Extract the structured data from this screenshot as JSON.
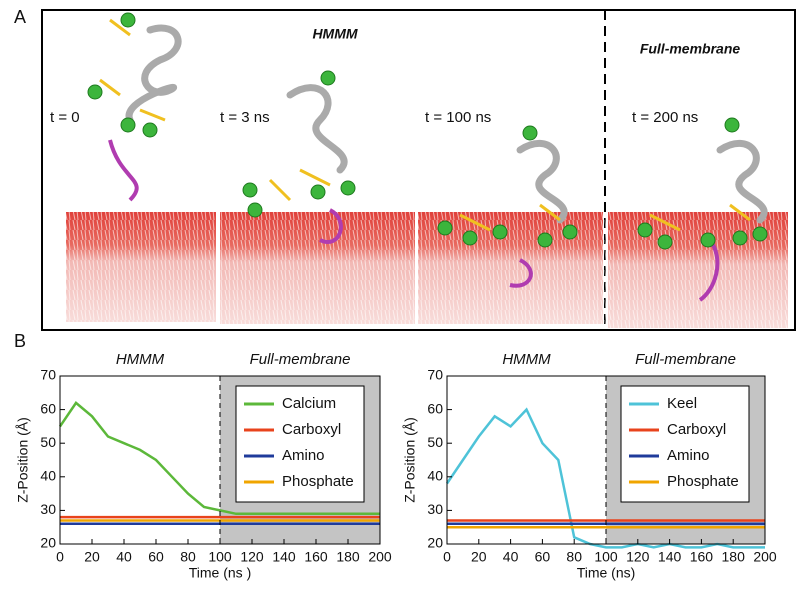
{
  "panel_a": {
    "label": "A",
    "titles": [
      "HMMM",
      "Full-membrane"
    ],
    "time_labels": [
      "t = 0",
      "t = 3 ns",
      "t = 100 ns",
      "t = 200 ns"
    ]
  },
  "panel_b": {
    "label": "B"
  },
  "chart_data": [
    {
      "type": "line",
      "x_label": "Time (ns )",
      "y_label": "Z-Position (Å)",
      "phases": [
        {
          "label": "HMMM",
          "range": [
            0,
            100
          ]
        },
        {
          "label": "Full-membrane",
          "range": [
            100,
            200
          ],
          "shaded": true
        }
      ],
      "x": [
        0,
        10,
        20,
        30,
        40,
        50,
        60,
        70,
        80,
        90,
        100,
        110,
        120,
        130,
        140,
        150,
        160,
        170,
        180,
        190,
        200
      ],
      "series": [
        {
          "name": "Calcium",
          "color": "#5cb83a",
          "values": [
            55,
            62,
            58,
            52,
            50,
            48,
            45,
            40,
            35,
            31,
            30,
            29,
            29,
            29,
            29,
            29,
            29,
            29,
            29,
            29,
            29
          ]
        },
        {
          "name": "Carboxyl",
          "color": "#e8431c",
          "values": [
            28,
            28,
            28,
            28,
            28,
            28,
            28,
            28,
            28,
            28,
            28,
            28,
            28,
            28,
            28,
            28,
            28,
            28,
            28,
            28,
            28
          ]
        },
        {
          "name": "Amino",
          "color": "#1f3b9b",
          "values": [
            26,
            26,
            26,
            26,
            26,
            26,
            26,
            26,
            26,
            26,
            26,
            26,
            26,
            26,
            26,
            26,
            26,
            26,
            26,
            26,
            26
          ]
        },
        {
          "name": "Phosphate",
          "color": "#f0a500",
          "values": [
            27,
            27,
            27,
            27,
            27,
            27,
            27,
            27,
            27,
            27,
            27,
            27,
            27,
            27,
            27,
            27,
            27,
            27,
            27,
            27,
            27
          ]
        }
      ],
      "xlim": [
        0,
        200
      ],
      "xticks": [
        0,
        20,
        40,
        60,
        80,
        100,
        120,
        140,
        160,
        180,
        200
      ],
      "ylim": [
        20,
        70
      ],
      "yticks": [
        20,
        30,
        40,
        50,
        60,
        70
      ],
      "grid": false,
      "legend": "upper right"
    },
    {
      "type": "line",
      "x_label": "Time (ns)",
      "y_label": "Z-Position (Å)",
      "phases": [
        {
          "label": "HMMM",
          "range": [
            0,
            100
          ]
        },
        {
          "label": "Full-membrane",
          "range": [
            100,
            200
          ],
          "shaded": true
        }
      ],
      "x": [
        0,
        10,
        20,
        30,
        40,
        50,
        60,
        70,
        80,
        90,
        100,
        110,
        120,
        130,
        140,
        150,
        160,
        170,
        180,
        190,
        200
      ],
      "series": [
        {
          "name": "Keel",
          "color": "#4ec3d8",
          "values": [
            38,
            45,
            52,
            58,
            55,
            60,
            50,
            45,
            22,
            20,
            19,
            19,
            20,
            19,
            20,
            19,
            19,
            20,
            19,
            19,
            19
          ]
        },
        {
          "name": "Carboxyl",
          "color": "#e8431c",
          "values": [
            27,
            27,
            27,
            27,
            27,
            27,
            27,
            27,
            27,
            27,
            27,
            27,
            27,
            27,
            27,
            27,
            27,
            27,
            27,
            27,
            27
          ]
        },
        {
          "name": "Amino",
          "color": "#1f3b9b",
          "values": [
            26,
            26,
            26,
            26,
            26,
            26,
            26,
            26,
            26,
            26,
            26,
            26,
            26,
            26,
            26,
            26,
            26,
            26,
            26,
            26,
            26
          ]
        },
        {
          "name": "Phosphate",
          "color": "#f0a500",
          "values": [
            25,
            25,
            25,
            25,
            25,
            25,
            25,
            25,
            25,
            25,
            25,
            25,
            25,
            25,
            25,
            25,
            25,
            25,
            25,
            25,
            25
          ]
        }
      ],
      "xlim": [
        0,
        200
      ],
      "xticks": [
        0,
        20,
        40,
        60,
        80,
        100,
        120,
        140,
        160,
        180,
        200
      ],
      "ylim": [
        20,
        70
      ],
      "yticks": [
        20,
        30,
        40,
        50,
        60,
        70
      ],
      "grid": false,
      "legend": "upper right"
    }
  ]
}
